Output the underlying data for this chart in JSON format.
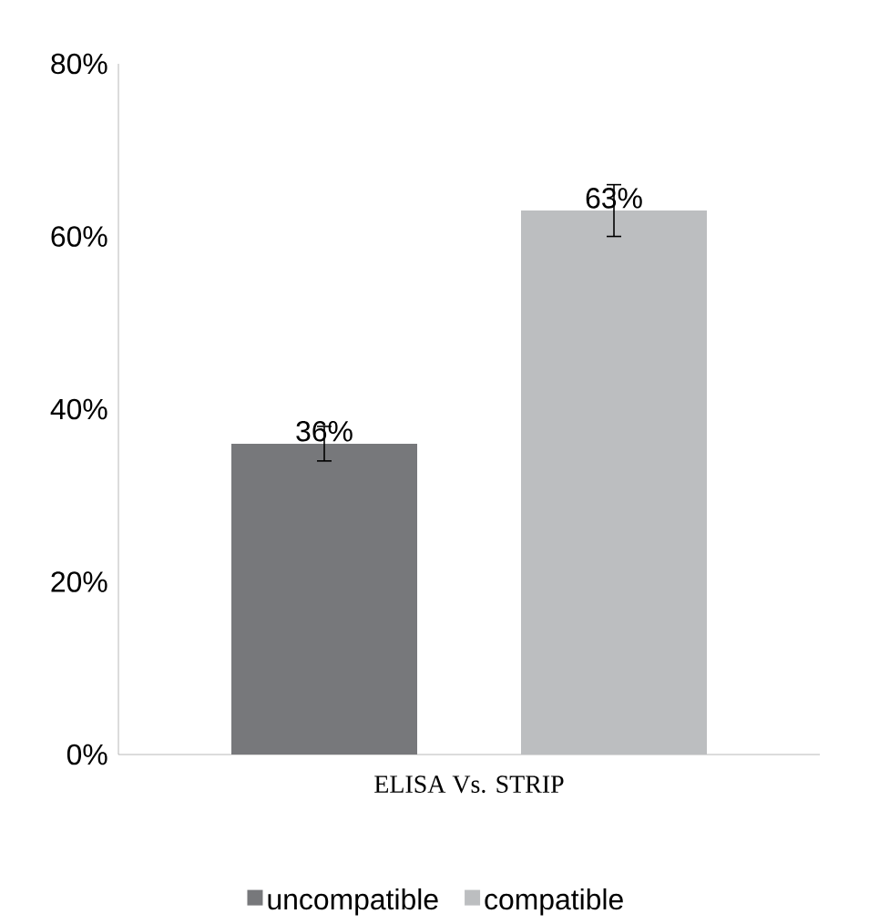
{
  "chart_data": {
    "type": "bar",
    "categories": [
      "ELISA Vs. STRIP"
    ],
    "series": [
      {
        "name": "uncompatible",
        "color": "#77787b",
        "values": [
          36
        ],
        "errors": [
          2
        ],
        "value_labels": [
          "36%"
        ]
      },
      {
        "name": "compatible",
        "color": "#bcbec0",
        "values": [
          63
        ],
        "errors": [
          3
        ],
        "value_labels": [
          "63%"
        ]
      }
    ],
    "ylim": [
      0,
      80
    ],
    "yticks": [
      {
        "value": 0,
        "label": "0%"
      },
      {
        "value": 20,
        "label": "20%"
      },
      {
        "value": 40,
        "label": "40%"
      },
      {
        "value": 60,
        "label": "60%"
      },
      {
        "value": 80,
        "label": "80%"
      }
    ],
    "legend": "bottom"
  }
}
